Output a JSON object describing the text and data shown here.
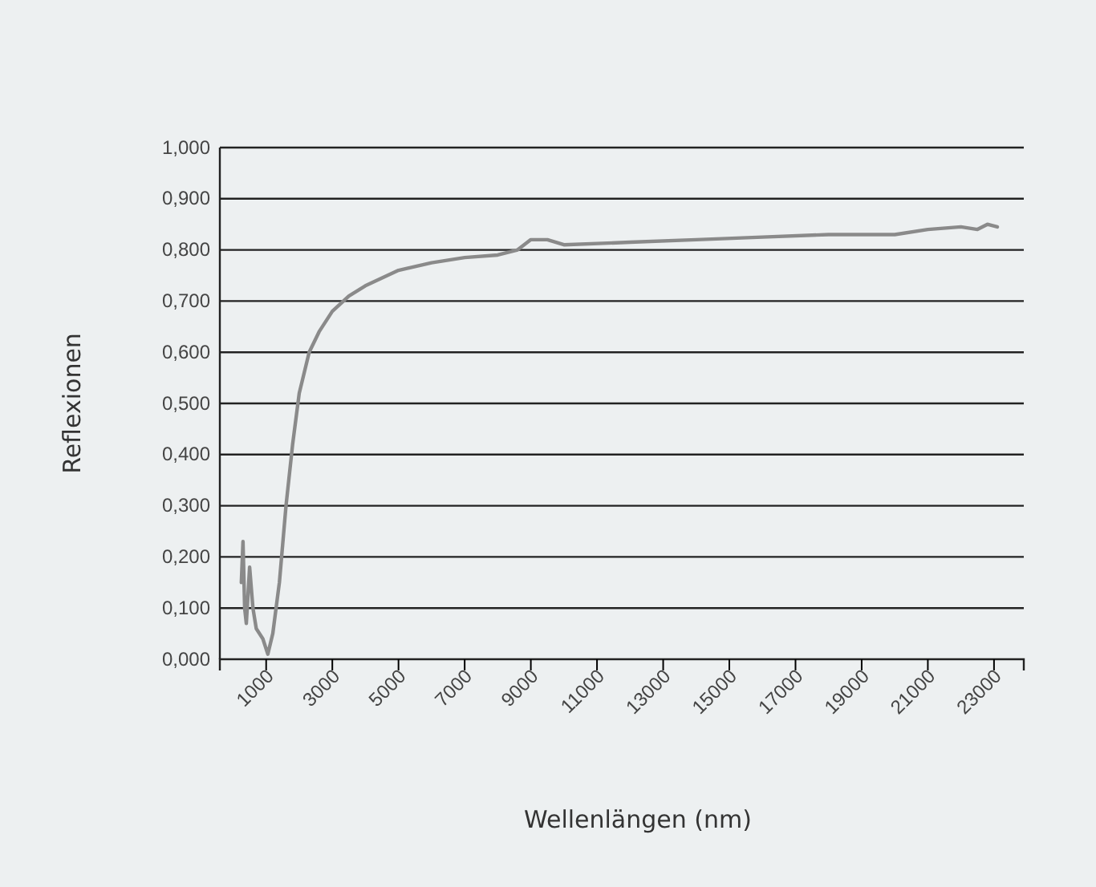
{
  "chart_data": {
    "type": "line",
    "xlabel": "Wellenlängen (nm)",
    "ylabel": "Reflexionen",
    "x": [
      250,
      300,
      350,
      400,
      500,
      600,
      700,
      900,
      1050,
      1200,
      1400,
      1600,
      1800,
      2000,
      2300,
      2600,
      3000,
      3500,
      4000,
      5000,
      6000,
      7000,
      8000,
      8600,
      9000,
      9500,
      10000,
      12000,
      14000,
      16000,
      18000,
      20000,
      21000,
      22000,
      22500,
      22800,
      23100
    ],
    "series": [
      {
        "color": "#8a8a8a",
        "values": [
          0.15,
          0.23,
          0.1,
          0.07,
          0.18,
          0.1,
          0.06,
          0.04,
          0.01,
          0.05,
          0.15,
          0.3,
          0.42,
          0.52,
          0.6,
          0.64,
          0.68,
          0.71,
          0.73,
          0.76,
          0.775,
          0.785,
          0.79,
          0.8,
          0.82,
          0.82,
          0.81,
          0.815,
          0.82,
          0.825,
          0.83,
          0.83,
          0.84,
          0.845,
          0.84,
          0.85,
          0.845
        ]
      }
    ],
    "xlim": [
      -400,
      23900
    ],
    "xticks": [
      1000,
      3000,
      5000,
      7000,
      9000,
      11000,
      13000,
      15000,
      17000,
      19000,
      21000,
      23000
    ],
    "ylim": [
      0,
      1
    ],
    "yticks": [
      {
        "value": 0,
        "label": "0,000"
      },
      {
        "value": 0.1,
        "label": "0,100"
      },
      {
        "value": 0.2,
        "label": "0,200"
      },
      {
        "value": 0.3,
        "label": "0,300"
      },
      {
        "value": 0.4,
        "label": "0,400"
      },
      {
        "value": 0.5,
        "label": "0,500"
      },
      {
        "value": 0.6,
        "label": "0,600"
      },
      {
        "value": 0.7,
        "label": "0,700"
      },
      {
        "value": 0.8,
        "label": "0,800"
      },
      {
        "value": 0.9,
        "label": "0,900"
      },
      {
        "value": 1,
        "label": "1,000"
      }
    ],
    "grid": "y",
    "marker": "none",
    "line_style": "solid"
  }
}
